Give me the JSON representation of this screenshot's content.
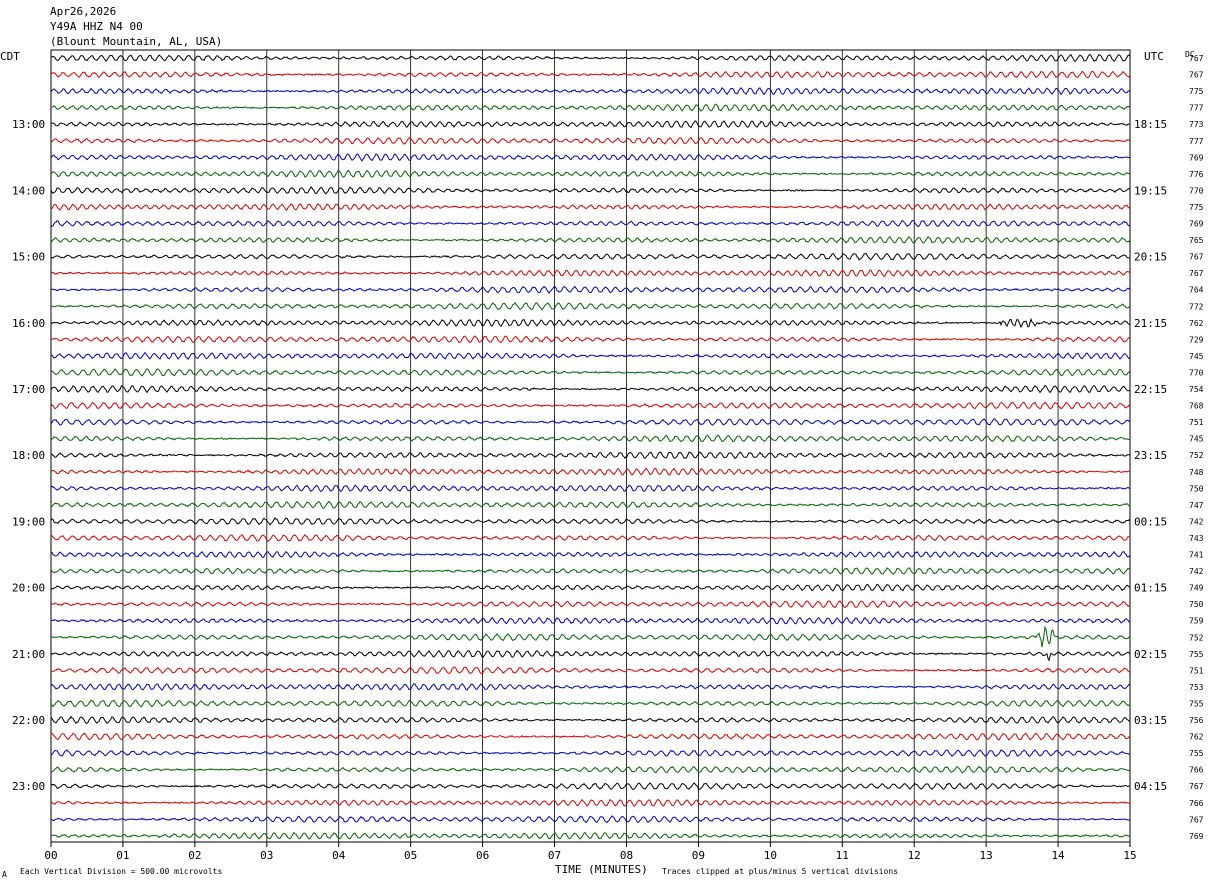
{
  "header": {
    "date": "Apr26,2026",
    "station": "Y49A HHZ N4 00",
    "location": "(Blount Mountain, AL, USA)",
    "left_tz": "CDT",
    "right_tz": "UTC",
    "dc_label": "DC"
  },
  "footer": {
    "scale_note": "Each Vertical Division =  500.00 microvolts",
    "xlabel": "TIME (MINUTES)",
    "clip_note": "Traces clipped at plus/minus 5 vertical divisions",
    "corner_mark": "A"
  },
  "colors": {
    "trace_cycle": [
      "#000000",
      "#dd0000",
      "#0000cc",
      "#006600"
    ],
    "grid": "#000000"
  },
  "chart_data": {
    "type": "line",
    "title": "",
    "xlabel": "TIME (MINUTES)",
    "xlim": [
      0,
      15
    ],
    "x_ticks": [
      "00",
      "01",
      "02",
      "03",
      "04",
      "05",
      "06",
      "07",
      "08",
      "09",
      "10",
      "11",
      "12",
      "13",
      "14",
      "15"
    ],
    "left_hour_labels": [
      "13:00",
      "14:00",
      "15:00",
      "16:00",
      "17:00",
      "18:00",
      "19:00",
      "20:00",
      "21:00",
      "22:00",
      "23:00"
    ],
    "right_hour_labels": [
      "18:15",
      "19:15",
      "20:15",
      "21:15",
      "22:15",
      "23:15",
      "00:15",
      "01:15",
      "02:15",
      "03:15",
      "04:15"
    ],
    "rows_per_hour": 4,
    "row_count": 48,
    "dc_offsets": [
      767,
      767,
      775,
      777,
      773,
      777,
      769,
      776,
      770,
      775,
      769,
      765,
      767,
      767,
      764,
      772,
      762,
      729,
      745,
      770,
      754,
      768,
      751,
      745,
      752,
      748,
      750,
      747,
      742,
      743,
      741,
      742,
      749,
      750,
      759,
      752,
      755,
      751,
      753,
      755,
      756,
      762,
      755,
      766,
      767,
      766,
      767,
      769
    ],
    "grid": true,
    "events": [
      {
        "row": 16,
        "minute_start": 13.2,
        "minute_end": 13.7,
        "description": "burst"
      },
      {
        "row": 35,
        "minute_start": 13.7,
        "minute_end": 13.95,
        "description": "spike"
      },
      {
        "row": 36,
        "minute_start": 13.85,
        "minute_end": 13.9,
        "description": "spike"
      }
    ]
  }
}
